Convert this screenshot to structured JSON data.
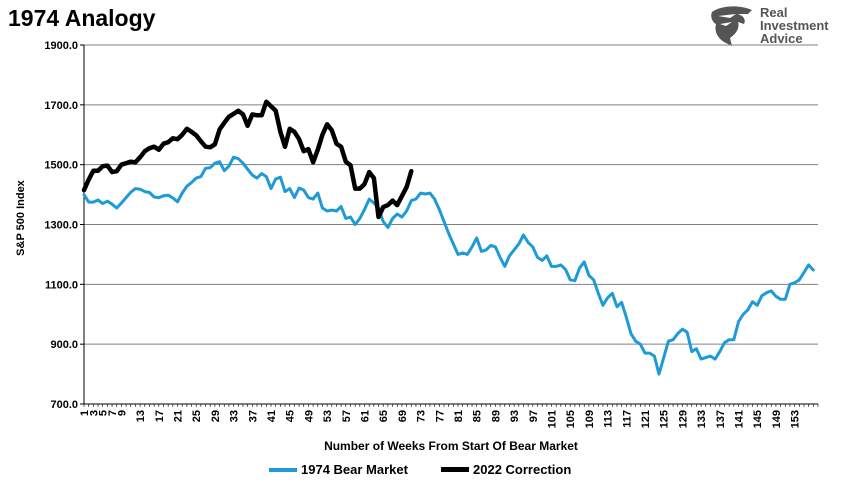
{
  "chart_data": {
    "type": "line",
    "title": "1974 Analogy",
    "xlabel": "Number of Weeks From Start Of Bear Market",
    "ylabel": "S&P 500 Index",
    "ylim": [
      700,
      1900
    ],
    "yticks": [
      700,
      900,
      1100,
      1300,
      1500,
      1700,
      1900
    ],
    "ytick_labels": [
      "700.0",
      "900.0",
      "1100.0",
      "1300.0",
      "1500.0",
      "1700.0",
      "1900.0"
    ],
    "xlim": [
      1,
      158
    ],
    "xticks": [
      1,
      3,
      5,
      7,
      9,
      13,
      17,
      21,
      25,
      29,
      33,
      37,
      41,
      45,
      49,
      53,
      57,
      61,
      65,
      69,
      73,
      77,
      81,
      85,
      89,
      93,
      97,
      101,
      105,
      109,
      113,
      117,
      121,
      125,
      129,
      133,
      137,
      141,
      145,
      149,
      153
    ],
    "grid": "horizontal",
    "legend_position": "bottom",
    "series": [
      {
        "name": "1974 Bear Market",
        "color": "#1E9BD7",
        "values": [
          1400,
          1375,
          1375,
          1382,
          1370,
          1378,
          1368,
          1355,
          1372,
          1390,
          1408,
          1420,
          1418,
          1410,
          1407,
          1392,
          1390,
          1396,
          1398,
          1389,
          1376,
          1405,
          1428,
          1440,
          1455,
          1460,
          1488,
          1490,
          1505,
          1510,
          1480,
          1495,
          1525,
          1520,
          1505,
          1485,
          1465,
          1455,
          1470,
          1460,
          1420,
          1452,
          1458,
          1410,
          1420,
          1390,
          1422,
          1415,
          1390,
          1385,
          1405,
          1355,
          1345,
          1348,
          1345,
          1360,
          1320,
          1325,
          1300,
          1320,
          1350,
          1385,
          1372,
          1355,
          1310,
          1290,
          1320,
          1335,
          1325,
          1345,
          1380,
          1385,
          1405,
          1402,
          1405,
          1385,
          1350,
          1310,
          1270,
          1235,
          1200,
          1205,
          1200,
          1225,
          1255,
          1210,
          1215,
          1230,
          1225,
          1190,
          1160,
          1195,
          1215,
          1235,
          1265,
          1240,
          1225,
          1190,
          1180,
          1195,
          1160,
          1160,
          1165,
          1150,
          1115,
          1112,
          1155,
          1175,
          1130,
          1115,
          1070,
          1030,
          1055,
          1070,
          1025,
          1040,
          990,
          935,
          910,
          900,
          870,
          870,
          860,
          800,
          855,
          910,
          915,
          935,
          950,
          940,
          875,
          885,
          850,
          855,
          860,
          850,
          875,
          905,
          915,
          915,
          975,
          1000,
          1015,
          1042,
          1030,
          1062,
          1072,
          1078,
          1060,
          1050,
          1050,
          1100,
          1105,
          1115,
          1140,
          1165,
          1148
        ]
      },
      {
        "name": "2022 Correction",
        "color": "#000000",
        "values": [
          1415,
          1450,
          1480,
          1480,
          1495,
          1497,
          1475,
          1478,
          1500,
          1505,
          1510,
          1508,
          1525,
          1545,
          1555,
          1560,
          1550,
          1570,
          1575,
          1588,
          1585,
          1600,
          1620,
          1610,
          1598,
          1578,
          1560,
          1558,
          1568,
          1618,
          1640,
          1660,
          1670,
          1680,
          1668,
          1630,
          1668,
          1665,
          1665,
          1710,
          1695,
          1680,
          1610,
          1560,
          1620,
          1610,
          1585,
          1545,
          1552,
          1508,
          1550,
          1600,
          1635,
          1615,
          1570,
          1560,
          1510,
          1498,
          1420,
          1420,
          1435,
          1475,
          1455,
          1325,
          1358,
          1365,
          1380,
          1365,
          1395,
          1425,
          1478
        ]
      }
    ]
  },
  "logo": {
    "line1": "Real",
    "line2": "Investment",
    "line3": "Advice",
    "color": "#555555"
  },
  "colors": {
    "grid": "#808080",
    "axis": "#000000"
  }
}
